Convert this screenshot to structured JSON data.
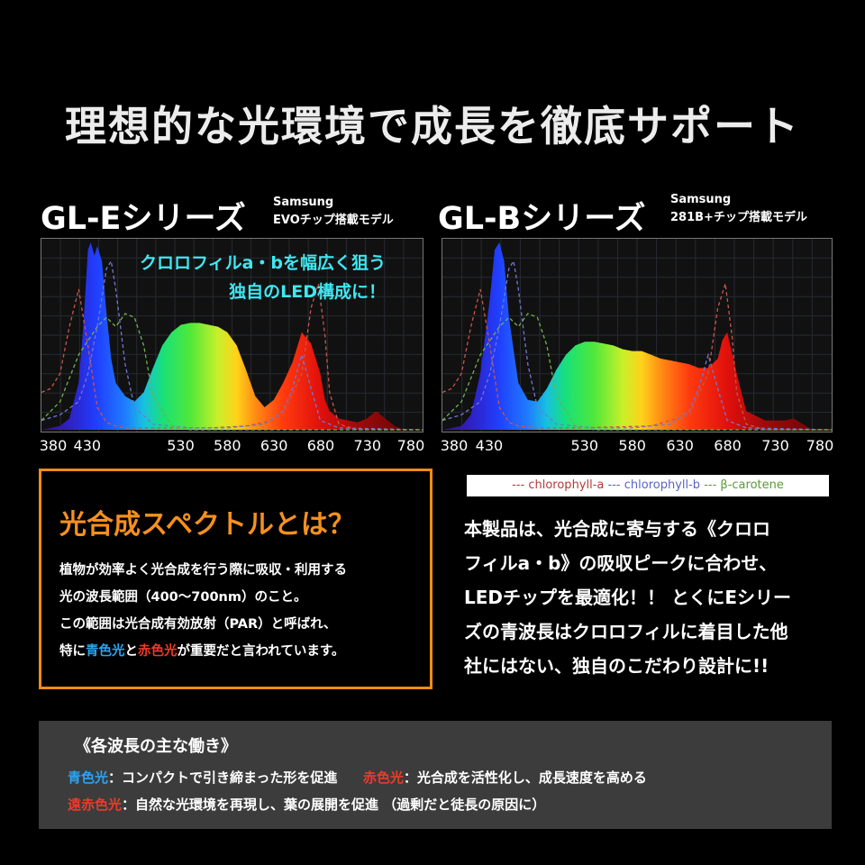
{
  "headline": "理想的な光環境で成長を徹底サポート",
  "series_e": {
    "title": "GL-Eシリーズ",
    "sub1": "Samsung",
    "sub2": "EVOチップ搭載モデル"
  },
  "series_b": {
    "title": "GL-Bシリーズ",
    "sub1": "Samsung",
    "sub2": "281B+チップ搭載モデル"
  },
  "callout": {
    "line1": "クロロフィルa・bを幅広く狙う",
    "line2": "独自のLED構成に！"
  },
  "legend": {
    "a": "--- chlorophyll-a",
    "b": "--- chlorophyll-b",
    "c": "--- β-carotene"
  },
  "info": {
    "title": "光合成スペクトルとは？",
    "line1": "植物が効率よく光合成を行う際に吸収・利用する",
    "line2": "光の波長範囲（400〜700nm）のこと。",
    "line3": "この範囲は光合成有効放射（PAR）と呼ばれ、",
    "line4_pre": "特に",
    "line4_blue": "青色光",
    "line4_mid": "と",
    "line4_red": "赤色光",
    "line4_post": "が重要だと言われています。"
  },
  "desc": {
    "line1": "本製品は、光合成に寄与する《クロロ",
    "line2": "フィルa・b》の吸収ピークに合わせ、",
    "line3": "LEDチップを最適化！！ とくにEシリー",
    "line4": "ズの青波長はクロロフィルに着目した他",
    "line5": "社にはない、独自のこだわり設計に!!"
  },
  "bottom": {
    "title": "《各波長の主な働き》",
    "blue_label": "青色光",
    "blue_text": "：コンパクトで引き締まった形を促進",
    "red_label": "赤色光",
    "red_text": "：光合成を活性化し、成長速度を高める",
    "far_label": "遠赤色光",
    "far_text": "：自然な光環境を再現し、葉の展開を促進 （過剰だと徒長の原因に）"
  },
  "chart_data": [
    {
      "type": "area",
      "xlim": [
        380,
        790
      ],
      "ylim": [
        0,
        1
      ],
      "x_ticks": [
        "380",
        "430",
        "530",
        "580",
        "630",
        "680",
        "730",
        "780"
      ],
      "x_tick_values": [
        380,
        430,
        530,
        580,
        630,
        680,
        730,
        780
      ],
      "grid": true,
      "series": [
        {
          "x": [
            380,
            400,
            410,
            420,
            425,
            430,
            433,
            437,
            440,
            445,
            450,
            455,
            460,
            470,
            480,
            490,
            500,
            510,
            520,
            530,
            540,
            550,
            560,
            570,
            580,
            590,
            600,
            610,
            620,
            630,
            640,
            650,
            660,
            670,
            675,
            680,
            685,
            690,
            700,
            710,
            720,
            730,
            740,
            750,
            760,
            770,
            790
          ],
          "values": [
            0.0,
            0.02,
            0.06,
            0.25,
            0.55,
            0.96,
            1.0,
            0.93,
            0.98,
            0.9,
            0.62,
            0.38,
            0.25,
            0.18,
            0.15,
            0.2,
            0.33,
            0.45,
            0.52,
            0.56,
            0.57,
            0.57,
            0.56,
            0.55,
            0.52,
            0.45,
            0.32,
            0.18,
            0.12,
            0.16,
            0.25,
            0.36,
            0.52,
            0.46,
            0.38,
            0.3,
            0.16,
            0.1,
            0.06,
            0.05,
            0.04,
            0.06,
            0.1,
            0.06,
            0.02,
            0.0,
            0.0
          ]
        },
        {
          "name": "chlorophyll-a",
          "x": [
            380,
            390,
            400,
            410,
            420,
            430,
            440,
            450,
            460,
            470,
            480,
            490,
            500,
            520,
            560,
            600,
            620,
            640,
            660,
            670,
            678,
            685,
            690,
            700,
            720,
            790
          ],
          "values": [
            0.2,
            0.22,
            0.3,
            0.55,
            0.75,
            0.45,
            0.12,
            0.04,
            0.02,
            0.01,
            0.01,
            0.01,
            0.01,
            0.01,
            0.01,
            0.02,
            0.04,
            0.08,
            0.3,
            0.65,
            0.78,
            0.5,
            0.2,
            0.03,
            0.0,
            0.0
          ]
        },
        {
          "name": "chlorophyll-b",
          "x": [
            380,
            400,
            420,
            430,
            440,
            450,
            455,
            460,
            470,
            480,
            500,
            540,
            580,
            620,
            640,
            650,
            660,
            670,
            680,
            700,
            790
          ],
          "values": [
            0.05,
            0.08,
            0.15,
            0.3,
            0.55,
            0.86,
            0.9,
            0.75,
            0.35,
            0.12,
            0.03,
            0.01,
            0.01,
            0.03,
            0.1,
            0.22,
            0.4,
            0.22,
            0.05,
            0.01,
            0.0
          ]
        },
        {
          "name": "β-carotene",
          "x": [
            380,
            400,
            420,
            440,
            450,
            460,
            470,
            480,
            490,
            500,
            520,
            540,
            790
          ],
          "values": [
            0.05,
            0.15,
            0.4,
            0.55,
            0.6,
            0.55,
            0.62,
            0.6,
            0.45,
            0.18,
            0.02,
            0.0,
            0.0
          ]
        }
      ]
    },
    {
      "type": "area",
      "xlim": [
        380,
        790
      ],
      "ylim": [
        0,
        1
      ],
      "x_ticks": [
        "380",
        "430",
        "530",
        "580",
        "630",
        "680",
        "730",
        "780"
      ],
      "x_tick_values": [
        380,
        430,
        530,
        580,
        630,
        680,
        730,
        780
      ],
      "grid": true,
      "series": [
        {
          "x": [
            380,
            400,
            410,
            420,
            430,
            435,
            440,
            445,
            450,
            460,
            470,
            480,
            490,
            500,
            510,
            520,
            530,
            540,
            550,
            560,
            570,
            580,
            590,
            600,
            610,
            620,
            630,
            640,
            650,
            660,
            670,
            675,
            680,
            690,
            700,
            720,
            740,
            750,
            760,
            770,
            790
          ],
          "values": [
            0.0,
            0.02,
            0.08,
            0.3,
            0.7,
            0.96,
            1.0,
            0.9,
            0.6,
            0.25,
            0.16,
            0.15,
            0.22,
            0.32,
            0.4,
            0.45,
            0.47,
            0.47,
            0.46,
            0.45,
            0.43,
            0.42,
            0.42,
            0.4,
            0.38,
            0.37,
            0.36,
            0.35,
            0.33,
            0.33,
            0.38,
            0.48,
            0.52,
            0.3,
            0.1,
            0.05,
            0.05,
            0.06,
            0.03,
            0.0,
            0.0
          ]
        },
        {
          "name": "chlorophyll-a",
          "x": [
            380,
            390,
            400,
            410,
            420,
            430,
            440,
            450,
            460,
            480,
            520,
            600,
            640,
            660,
            670,
            678,
            685,
            690,
            700,
            720,
            790
          ],
          "values": [
            0.2,
            0.22,
            0.3,
            0.55,
            0.75,
            0.45,
            0.12,
            0.04,
            0.02,
            0.01,
            0.01,
            0.02,
            0.08,
            0.3,
            0.65,
            0.78,
            0.5,
            0.2,
            0.03,
            0.0,
            0.0
          ]
        },
        {
          "name": "chlorophyll-b",
          "x": [
            380,
            400,
            420,
            430,
            440,
            450,
            455,
            460,
            470,
            480,
            500,
            540,
            580,
            620,
            640,
            650,
            660,
            670,
            680,
            700,
            790
          ],
          "values": [
            0.05,
            0.08,
            0.15,
            0.3,
            0.55,
            0.86,
            0.9,
            0.75,
            0.35,
            0.12,
            0.03,
            0.01,
            0.01,
            0.03,
            0.1,
            0.22,
            0.4,
            0.22,
            0.05,
            0.01,
            0.0
          ]
        },
        {
          "name": "β-carotene",
          "x": [
            380,
            400,
            420,
            440,
            450,
            460,
            470,
            480,
            490,
            500,
            520,
            540,
            790
          ],
          "values": [
            0.05,
            0.15,
            0.4,
            0.55,
            0.6,
            0.55,
            0.62,
            0.6,
            0.45,
            0.18,
            0.02,
            0.0,
            0.0
          ]
        }
      ]
    }
  ]
}
